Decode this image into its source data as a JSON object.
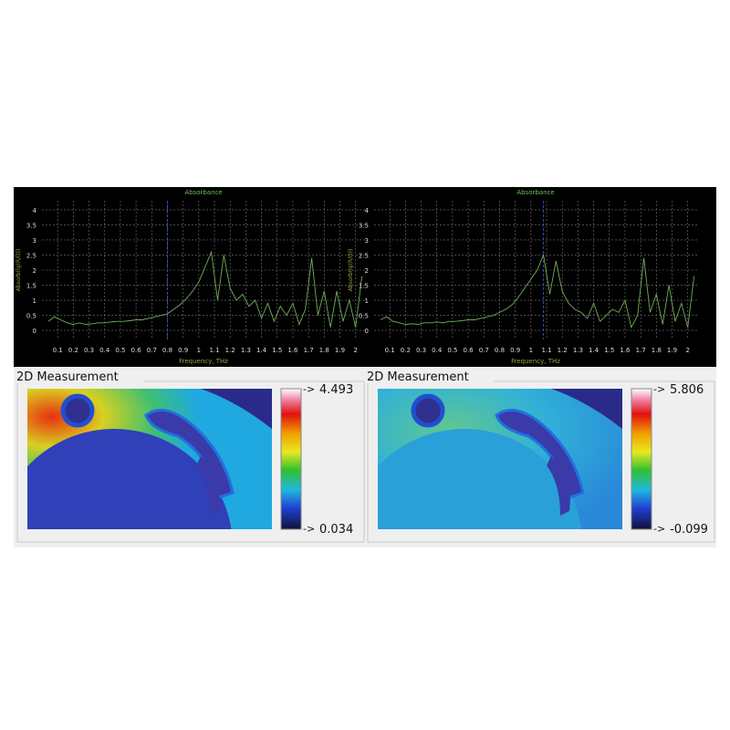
{
  "chart_data": [
    {
      "type": "line",
      "title": "Absorbance",
      "x_label": "Frequency, THz",
      "y_label": "Absorb(lg(R/D))",
      "x": [
        0.04,
        0.08,
        0.12,
        0.16,
        0.2,
        0.24,
        0.28,
        0.32,
        0.36,
        0.4,
        0.44,
        0.48,
        0.52,
        0.56,
        0.6,
        0.64,
        0.68,
        0.72,
        0.76,
        0.8,
        0.84,
        0.88,
        0.92,
        0.96,
        1.0,
        1.04,
        1.08,
        1.12,
        1.16,
        1.2,
        1.24,
        1.28,
        1.32,
        1.36,
        1.4,
        1.44,
        1.48,
        1.52,
        1.56,
        1.6,
        1.64,
        1.68,
        1.72,
        1.76,
        1.8,
        1.84,
        1.88,
        1.92,
        1.96,
        2.0,
        2.04
      ],
      "series": [
        {
          "color": "#6fae5a",
          "values": [
            0.3,
            0.45,
            0.35,
            0.25,
            0.2,
            0.25,
            0.2,
            0.22,
            0.25,
            0.25,
            0.28,
            0.3,
            0.3,
            0.32,
            0.35,
            0.35,
            0.4,
            0.45,
            0.5,
            0.55,
            0.7,
            0.85,
            1.05,
            1.3,
            1.6,
            2.1,
            2.6,
            1.0,
            2.5,
            1.4,
            1.0,
            1.2,
            0.8,
            1.0,
            0.4,
            0.9,
            0.3,
            0.8,
            0.5,
            0.9,
            0.2,
            0.7,
            2.4,
            0.5,
            1.3,
            0.1,
            1.3,
            0.3,
            1.0,
            0.1,
            1.8
          ]
        }
      ],
      "xlim": [
        0,
        2.06
      ],
      "ylim": [
        -0.3,
        4.3
      ],
      "xticks": [
        0.1,
        0.2,
        0.3,
        0.4,
        0.5,
        0.6,
        0.7,
        0.8,
        0.9,
        1,
        1.1,
        1.2,
        1.3,
        1.4,
        1.5,
        1.6,
        1.7,
        1.8,
        1.9,
        2
      ],
      "yticks": [
        0,
        0.5,
        1,
        1.5,
        2,
        2.5,
        3,
        3.5,
        4
      ],
      "grid": true,
      "cursor_x": 0.8
    },
    {
      "type": "line",
      "title": "Absorbance",
      "x_label": "Frequency, THz",
      "y_label": "Absorb(lg(R/D))",
      "x": [
        0.04,
        0.08,
        0.12,
        0.16,
        0.2,
        0.24,
        0.28,
        0.32,
        0.36,
        0.4,
        0.44,
        0.48,
        0.52,
        0.56,
        0.6,
        0.64,
        0.68,
        0.72,
        0.76,
        0.8,
        0.84,
        0.88,
        0.92,
        0.96,
        1.0,
        1.04,
        1.08,
        1.12,
        1.16,
        1.2,
        1.24,
        1.28,
        1.32,
        1.36,
        1.4,
        1.44,
        1.48,
        1.52,
        1.56,
        1.6,
        1.64,
        1.68,
        1.72,
        1.76,
        1.8,
        1.84,
        1.88,
        1.92,
        1.96,
        2.0,
        2.04
      ],
      "series": [
        {
          "color": "#6fae5a",
          "values": [
            0.35,
            0.45,
            0.3,
            0.25,
            0.2,
            0.22,
            0.2,
            0.25,
            0.25,
            0.28,
            0.25,
            0.3,
            0.3,
            0.32,
            0.35,
            0.35,
            0.4,
            0.45,
            0.5,
            0.6,
            0.7,
            0.85,
            1.1,
            1.4,
            1.7,
            2.0,
            2.5,
            1.2,
            2.3,
            1.3,
            0.9,
            0.7,
            0.6,
            0.4,
            0.9,
            0.3,
            0.5,
            0.7,
            0.6,
            1.0,
            0.1,
            0.5,
            2.4,
            0.6,
            1.2,
            0.2,
            1.5,
            0.3,
            0.9,
            0.1,
            1.8
          ]
        }
      ],
      "xlim": [
        0,
        2.06
      ],
      "ylim": [
        -0.3,
        4.3
      ],
      "xticks": [
        0.1,
        0.2,
        0.3,
        0.4,
        0.5,
        0.6,
        0.7,
        0.8,
        0.9,
        1,
        1.1,
        1.2,
        1.3,
        1.4,
        1.5,
        1.6,
        1.7,
        1.8,
        1.9,
        2
      ],
      "yticks": [
        0,
        0.5,
        1,
        1.5,
        2,
        2.5,
        3,
        3.5,
        4
      ],
      "grid": true,
      "cursor_x": 1.08
    }
  ],
  "panels": [
    {
      "title": "2D Measurement",
      "max": 4.493,
      "min": 0.034
    },
    {
      "title": "2D Measurement",
      "max": 5.806,
      "min": -0.099
    }
  ]
}
